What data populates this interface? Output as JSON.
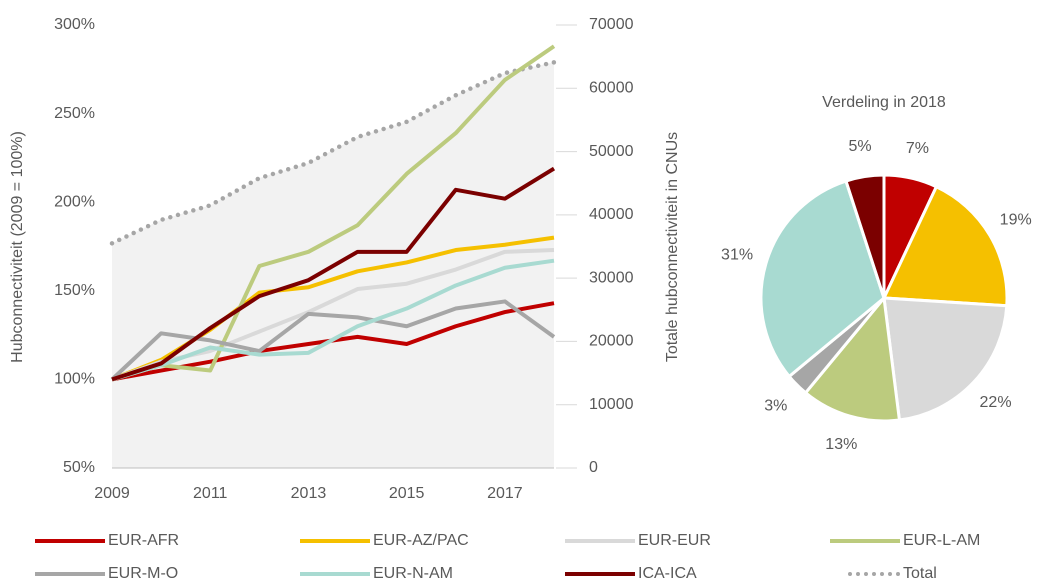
{
  "chart_data": [
    {
      "type": "line",
      "x": [
        2009,
        2010,
        2011,
        2012,
        2013,
        2014,
        2015,
        2016,
        2017,
        2018
      ],
      "xlim": [
        2009,
        2018
      ],
      "xticks": [
        2009,
        2011,
        2013,
        2015,
        2017
      ],
      "ylabel": "Hubconnectiviteit (2009 = 100%)",
      "y2label": "Totale hubconnectiviteit in CNUs",
      "ylim": [
        50,
        300
      ],
      "yticks": [
        {
          "value": 50,
          "label": "50%"
        },
        {
          "value": 100,
          "label": "100%"
        },
        {
          "value": 150,
          "label": "150%"
        },
        {
          "value": 200,
          "label": "200%"
        },
        {
          "value": 250,
          "label": "250%"
        },
        {
          "value": 300,
          "label": "300%"
        }
      ],
      "y2lim": [
        0,
        70000
      ],
      "y2ticks": [
        0,
        10000,
        20000,
        30000,
        40000,
        50000,
        60000,
        70000
      ],
      "grid": false,
      "legend": "bottom",
      "series": [
        {
          "name": "Total",
          "color": "#a6a6a6",
          "style": "dotted",
          "fill": "#f2f2f2",
          "axis": "y2",
          "values": [
            35500,
            39200,
            41500,
            45800,
            48200,
            52300,
            54700,
            58900,
            62400,
            64100
          ]
        },
        {
          "name": "EUR-AFR",
          "color": "#c00000",
          "values": [
            100,
            105,
            110,
            116,
            120,
            124,
            120,
            130,
            138,
            143
          ]
        },
        {
          "name": "EUR-AZ/PAC",
          "color": "#f5c000",
          "values": [
            100,
            111,
            128,
            149,
            152,
            161,
            166,
            173,
            176,
            180
          ]
        },
        {
          "name": "EUR-EUR",
          "color": "#d9d9d9",
          "values": [
            100,
            110,
            116,
            127,
            138,
            151,
            154,
            162,
            172,
            173
          ]
        },
        {
          "name": "EUR-L-AM",
          "color": "#bccb7e",
          "values": [
            100,
            108,
            105,
            164,
            172,
            187,
            216,
            239,
            269,
            288
          ]
        },
        {
          "name": "EUR-M-O",
          "color": "#a6a6a6",
          "values": [
            100,
            126,
            122,
            116,
            137,
            135,
            130,
            140,
            144,
            124
          ]
        },
        {
          "name": "EUR-N-AM",
          "color": "#a8dad1",
          "values": [
            100,
            108,
            118,
            114,
            115,
            130,
            140,
            153,
            163,
            167
          ]
        },
        {
          "name": "ICA-ICA",
          "color": "#7b0000",
          "values": [
            100,
            109,
            129,
            147,
            156,
            172,
            172,
            207,
            202,
            219
          ]
        }
      ]
    },
    {
      "type": "pie",
      "title": "Verdeling in 2018",
      "categories": [
        "EUR-AFR",
        "EUR-AZ/PAC",
        "EUR-EUR",
        "EUR-L-AM",
        "EUR-M-O",
        "EUR-N-AM",
        "ICA-ICA"
      ],
      "values": [
        7,
        19,
        22,
        13,
        3,
        31,
        5
      ],
      "value_labels": [
        "7%",
        "19%",
        "22%",
        "13%",
        "3%",
        "31%",
        "5%"
      ],
      "colors": [
        "#c00000",
        "#f5c000",
        "#d9d9d9",
        "#bccb7e",
        "#a6a6a6",
        "#a8dad1",
        "#7b0000"
      ]
    }
  ]
}
